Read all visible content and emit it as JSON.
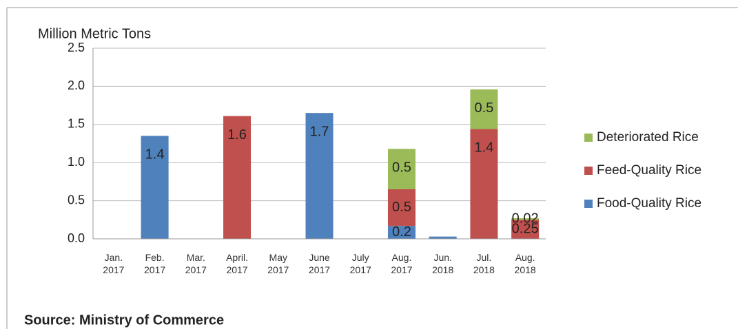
{
  "chart_data": {
    "type": "stacked_bar",
    "y_label": "Million Metric Tons",
    "source": "Source: Ministry of Commerce",
    "categories": [
      "Jan. 2017",
      "Feb. 2017",
      "Mar. 2017",
      "April. 2017",
      "May 2017",
      "June 2017",
      "July 2017",
      "Aug. 2017",
      "Jun. 2018",
      "Jul. 2018",
      "Aug. 2018"
    ],
    "series": [
      {
        "name": "Food-Quality Rice",
        "color": "#4f81bd",
        "values": [
          null,
          1.35,
          null,
          null,
          null,
          1.65,
          null,
          0.17,
          0.03,
          null,
          null
        ],
        "value_labels": [
          null,
          "1.4",
          null,
          null,
          null,
          "1.7",
          null,
          "0.2",
          null,
          null,
          null
        ]
      },
      {
        "name": "Feed-Quality Rice",
        "color": "#c0504d",
        "values": [
          null,
          null,
          null,
          1.61,
          null,
          null,
          null,
          0.48,
          null,
          1.44,
          0.25
        ],
        "value_labels": [
          null,
          null,
          null,
          "1.6",
          null,
          null,
          null,
          "0.5",
          null,
          "1.4",
          "0.25"
        ]
      },
      {
        "name": "Deteriorated Rice",
        "color": "#9bbb59",
        "values": [
          null,
          null,
          null,
          null,
          null,
          null,
          null,
          0.53,
          null,
          0.52,
          0.02
        ],
        "value_labels": [
          null,
          null,
          null,
          null,
          null,
          null,
          null,
          "0.5",
          null,
          "0.5",
          "0.02"
        ]
      }
    ],
    "ylim": [
      0,
      2.5
    ],
    "yticks": [
      {
        "value": 0,
        "label": "0.0"
      },
      {
        "value": 0.5,
        "label": "0.5"
      },
      {
        "value": 1,
        "label": "1.0"
      },
      {
        "value": 1.5,
        "label": "1.5"
      },
      {
        "value": 2,
        "label": "2.0"
      },
      {
        "value": 2.5,
        "label": "2.5"
      }
    ],
    "grid": true
  }
}
